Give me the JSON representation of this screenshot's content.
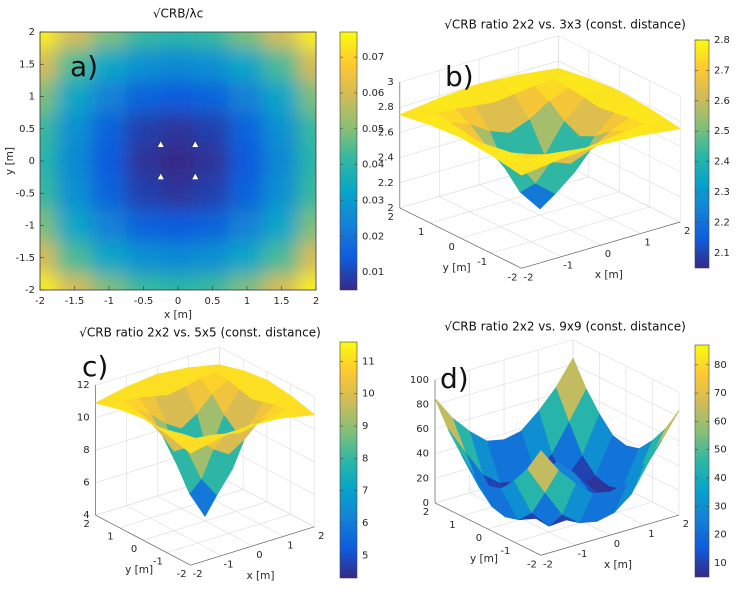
{
  "chart_data": [
    {
      "type": "heatmap",
      "title": "√CRB/λc",
      "panel_label": "a)",
      "xlabel": "x [m]",
      "ylabel": "y [m]",
      "x": [
        -2,
        -1.5,
        -1,
        -0.5,
        0,
        0.5,
        1,
        1.5,
        2
      ],
      "y": [
        -2,
        -1.5,
        -1,
        -0.5,
        0,
        0.5,
        1,
        1.5,
        2
      ],
      "z": [
        [
          0.075,
          0.06,
          0.049,
          0.042,
          0.04,
          0.042,
          0.049,
          0.06,
          0.075
        ],
        [
          0.06,
          0.044,
          0.033,
          0.027,
          0.025,
          0.027,
          0.033,
          0.044,
          0.06
        ],
        [
          0.049,
          0.033,
          0.023,
          0.016,
          0.014,
          0.016,
          0.023,
          0.033,
          0.049
        ],
        [
          0.042,
          0.027,
          0.016,
          0.009,
          0.007,
          0.009,
          0.016,
          0.027,
          0.042
        ],
        [
          0.04,
          0.025,
          0.014,
          0.007,
          0.005,
          0.007,
          0.014,
          0.025,
          0.04
        ],
        [
          0.042,
          0.027,
          0.016,
          0.009,
          0.007,
          0.009,
          0.016,
          0.027,
          0.042
        ],
        [
          0.049,
          0.033,
          0.023,
          0.016,
          0.014,
          0.016,
          0.023,
          0.033,
          0.049
        ],
        [
          0.06,
          0.044,
          0.033,
          0.027,
          0.025,
          0.027,
          0.033,
          0.044,
          0.06
        ],
        [
          0.075,
          0.06,
          0.049,
          0.042,
          0.04,
          0.042,
          0.049,
          0.06,
          0.075
        ]
      ],
      "markers": {
        "x": [
          -0.25,
          0.25,
          -0.25,
          0.25
        ],
        "y": [
          0.25,
          0.25,
          -0.25,
          -0.25
        ],
        "color": "#ffffff"
      },
      "xlim": [
        -2,
        2
      ],
      "ylim": [
        -2,
        2
      ],
      "xticks": [
        -2,
        -1.5,
        -1,
        -0.5,
        0,
        0.5,
        1,
        1.5,
        2
      ],
      "yticks": [
        -2,
        -1.5,
        -1,
        -0.5,
        0,
        0.5,
        1,
        1.5,
        2
      ],
      "clim": [
        0.005,
        0.077
      ],
      "cticks": [
        0.01,
        0.02,
        0.03,
        0.04,
        0.05,
        0.06,
        0.07
      ],
      "colormap": [
        "#352a87",
        "#0f5cdd",
        "#1481d6",
        "#06a4ca",
        "#2eb7a4",
        "#87bf77",
        "#d1bb59",
        "#fec832",
        "#f9fb0e"
      ]
    },
    {
      "type": "surface",
      "title": "√CRB ratio 2x2 vs. 3x3 (const. distance)",
      "panel_label": "b)",
      "xlabel": "x [m]",
      "ylabel": "y [m]",
      "x": [
        -2,
        -1.5,
        -1,
        -0.5,
        0,
        0.5,
        1,
        1.5,
        2
      ],
      "y": [
        -2,
        -1.5,
        -1,
        -0.5,
        0,
        0.5,
        1,
        1.5,
        2
      ],
      "z": [
        [
          2.74,
          2.76,
          2.78,
          2.79,
          2.8,
          2.79,
          2.78,
          2.76,
          2.74
        ],
        [
          2.76,
          2.76,
          2.75,
          2.73,
          2.71,
          2.73,
          2.75,
          2.76,
          2.76
        ],
        [
          2.78,
          2.75,
          2.69,
          2.59,
          2.53,
          2.59,
          2.69,
          2.75,
          2.78
        ],
        [
          2.79,
          2.73,
          2.59,
          2.36,
          2.23,
          2.36,
          2.59,
          2.73,
          2.79
        ],
        [
          2.8,
          2.71,
          2.53,
          2.23,
          2.05,
          2.23,
          2.53,
          2.71,
          2.8
        ],
        [
          2.79,
          2.73,
          2.59,
          2.36,
          2.23,
          2.36,
          2.59,
          2.73,
          2.79
        ],
        [
          2.78,
          2.75,
          2.69,
          2.59,
          2.53,
          2.59,
          2.69,
          2.75,
          2.78
        ],
        [
          2.76,
          2.76,
          2.75,
          2.73,
          2.71,
          2.73,
          2.75,
          2.76,
          2.76
        ],
        [
          2.74,
          2.76,
          2.78,
          2.79,
          2.8,
          2.79,
          2.78,
          2.76,
          2.74
        ]
      ],
      "xlim": [
        -2,
        2
      ],
      "ylim": [
        -2,
        2
      ],
      "zlim": [
        2,
        3
      ],
      "xticks": [
        -2,
        -1,
        0,
        1,
        2
      ],
      "yticks": [
        -2,
        -1,
        0,
        1,
        2
      ],
      "zticks": [
        2,
        2.2,
        2.4,
        2.6,
        2.8,
        3
      ],
      "clim": [
        2.05,
        2.8
      ],
      "cticks": [
        2.1,
        2.2,
        2.3,
        2.4,
        2.5,
        2.6,
        2.7,
        2.8
      ],
      "grid": true,
      "colormap": [
        "#352a87",
        "#0f5cdd",
        "#1481d6",
        "#06a4ca",
        "#2eb7a4",
        "#87bf77",
        "#d1bb59",
        "#fec832",
        "#f9fb0e"
      ]
    },
    {
      "type": "surface",
      "title": "√CRB ratio 2x2 vs. 5x5 (const. distance)",
      "panel_label": "c)",
      "xlabel": "x [m]",
      "ylabel": "y [m]",
      "x": [
        -2,
        -1.5,
        -1,
        -0.5,
        0,
        0.5,
        1,
        1.5,
        2
      ],
      "y": [
        -2,
        -1.5,
        -1,
        -0.5,
        0,
        0.5,
        1,
        1.5,
        2
      ],
      "z": [
        [
          10.9,
          11.1,
          11.3,
          11.4,
          11.5,
          11.4,
          11.3,
          11.1,
          10.9
        ],
        [
          11.1,
          11.1,
          11.0,
          10.8,
          10.6,
          10.8,
          11.0,
          11.1,
          11.1
        ],
        [
          11.3,
          11.0,
          10.4,
          9.5,
          8.9,
          9.5,
          10.4,
          11.0,
          11.3
        ],
        [
          11.4,
          10.8,
          9.5,
          7.3,
          6.0,
          7.3,
          9.5,
          10.8,
          11.4
        ],
        [
          11.5,
          10.6,
          8.9,
          6.0,
          4.3,
          6.0,
          8.9,
          10.6,
          11.5
        ],
        [
          11.4,
          10.8,
          9.5,
          7.3,
          6.0,
          7.3,
          9.5,
          10.8,
          11.4
        ],
        [
          11.3,
          11.0,
          10.4,
          9.5,
          8.9,
          9.5,
          10.4,
          11.0,
          11.3
        ],
        [
          11.1,
          11.1,
          11.0,
          10.8,
          10.6,
          10.8,
          11.0,
          11.1,
          11.1
        ],
        [
          10.9,
          11.1,
          11.3,
          11.4,
          11.5,
          11.4,
          11.3,
          11.1,
          10.9
        ]
      ],
      "xlim": [
        -2,
        2
      ],
      "ylim": [
        -2,
        2
      ],
      "zlim": [
        4,
        12
      ],
      "xticks": [
        -2,
        -1,
        0,
        1,
        2
      ],
      "yticks": [
        -2,
        -1,
        0,
        1,
        2
      ],
      "zticks": [
        4,
        6,
        8,
        10,
        12
      ],
      "clim": [
        4.3,
        11.6
      ],
      "cticks": [
        5,
        6,
        7,
        8,
        9,
        10,
        11
      ],
      "grid": true,
      "colormap": [
        "#352a87",
        "#0f5cdd",
        "#1481d6",
        "#06a4ca",
        "#2eb7a4",
        "#87bf77",
        "#d1bb59",
        "#fec832",
        "#f9fb0e"
      ]
    },
    {
      "type": "surface",
      "title": "√CRB ratio 2x2 vs. 9x9 (const. distance)",
      "panel_label": "d)",
      "xlabel": "x [m]",
      "ylabel": "y [m]",
      "x": [
        -2,
        -1.5,
        -1,
        -0.5,
        0,
        0.5,
        1,
        1.5,
        2
      ],
      "y": [
        -2,
        -1.5,
        -1,
        -0.5,
        0,
        0.5,
        1,
        1.5,
        2
      ],
      "z": [
        [
          85,
          65,
          50,
          38,
          35,
          38,
          50,
          65,
          85
        ],
        [
          65,
          42,
          20,
          9,
          6,
          9,
          20,
          42,
          65
        ],
        [
          50,
          20,
          5,
          6,
          8,
          6,
          5,
          20,
          50
        ],
        [
          38,
          9,
          6,
          17,
          25,
          17,
          6,
          9,
          38
        ],
        [
          35,
          6,
          8,
          25,
          38,
          25,
          8,
          6,
          35
        ],
        [
          38,
          9,
          6,
          17,
          25,
          17,
          6,
          9,
          38
        ],
        [
          50,
          20,
          5,
          6,
          8,
          6,
          5,
          20,
          50
        ],
        [
          65,
          42,
          20,
          9,
          6,
          9,
          20,
          42,
          65
        ],
        [
          85,
          65,
          50,
          38,
          35,
          38,
          50,
          65,
          85
        ]
      ],
      "xlim": [
        -2,
        2
      ],
      "ylim": [
        -2,
        2
      ],
      "zlim": [
        0,
        100
      ],
      "xticks": [
        -2,
        -1,
        0,
        1,
        2
      ],
      "yticks": [
        -2,
        -1,
        0,
        1,
        2
      ],
      "zticks": [
        0,
        20,
        40,
        60,
        80,
        100
      ],
      "clim": [
        5,
        87
      ],
      "cticks": [
        10,
        20,
        30,
        40,
        50,
        60,
        70,
        80
      ],
      "grid": true,
      "colormap": [
        "#352a87",
        "#0f5cdd",
        "#1481d6",
        "#06a4ca",
        "#2eb7a4",
        "#87bf77",
        "#d1bb59",
        "#fec832",
        "#f9fb0e"
      ]
    }
  ]
}
